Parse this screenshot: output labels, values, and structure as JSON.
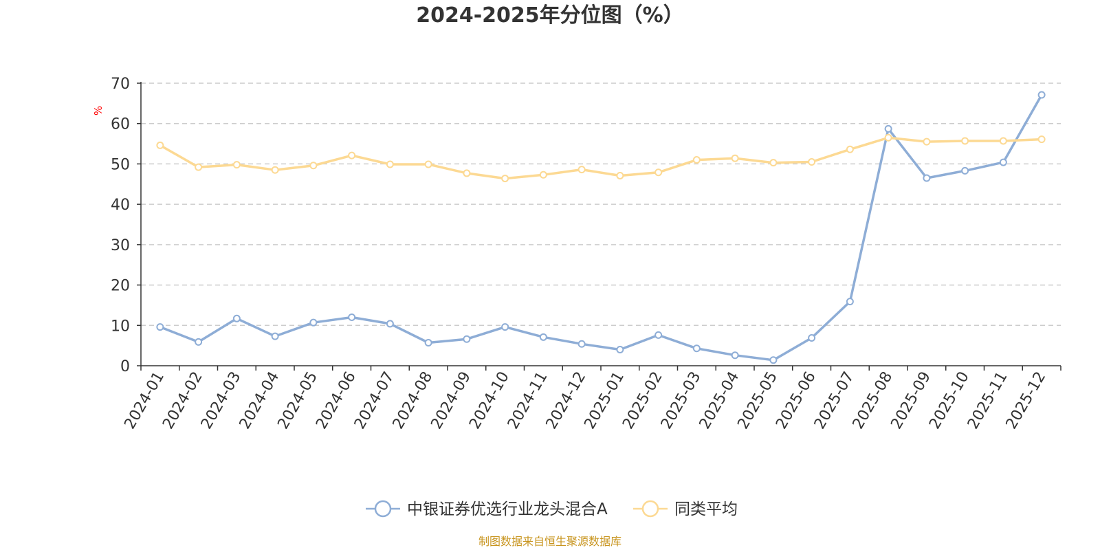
{
  "chart_data": {
    "type": "line",
    "title": "2024-2025年分位图（%）",
    "ylabel": "%",
    "xlabel": "",
    "ylim": [
      0,
      70
    ],
    "yticks": [
      0,
      10,
      20,
      30,
      40,
      50,
      60,
      70
    ],
    "grid": true,
    "legend_position": "bottom",
    "categories": [
      "2024-01",
      "2024-02",
      "2024-03",
      "2024-04",
      "2024-05",
      "2024-06",
      "2024-07",
      "2024-08",
      "2024-09",
      "2024-10",
      "2024-11",
      "2024-12",
      "2025-01",
      "2025-02",
      "2025-03",
      "2025-04",
      "2025-05",
      "2025-06",
      "2025-07",
      "2025-08",
      "2025-09",
      "2025-10",
      "2025-11",
      "2025-12"
    ],
    "series": [
      {
        "name": "中银证券优选行业龙头混合A",
        "color": "#8eadd6",
        "values": [
          9.6,
          5.9,
          11.7,
          7.3,
          10.7,
          12.0,
          10.4,
          5.7,
          6.6,
          9.6,
          7.1,
          5.4,
          4.0,
          7.6,
          4.3,
          2.6,
          1.4,
          6.9,
          15.9,
          58.7,
          46.5,
          48.3,
          50.4,
          67.1
        ]
      },
      {
        "name": "同类平均",
        "color": "#fcd993",
        "values": [
          54.6,
          49.2,
          49.8,
          48.5,
          49.6,
          52.1,
          49.9,
          49.9,
          47.7,
          46.4,
          47.3,
          48.6,
          47.1,
          47.9,
          51.0,
          51.4,
          50.3,
          50.5,
          53.6,
          56.5,
          55.5,
          55.7,
          55.7,
          56.1
        ]
      }
    ]
  },
  "footer": {
    "source_text": "制图数据来自恒生聚源数据库",
    "source_color": "#c8951f"
  },
  "colors": {
    "unit_label": "#ff0000",
    "axis": "#333333",
    "grid": "#cccccc"
  }
}
